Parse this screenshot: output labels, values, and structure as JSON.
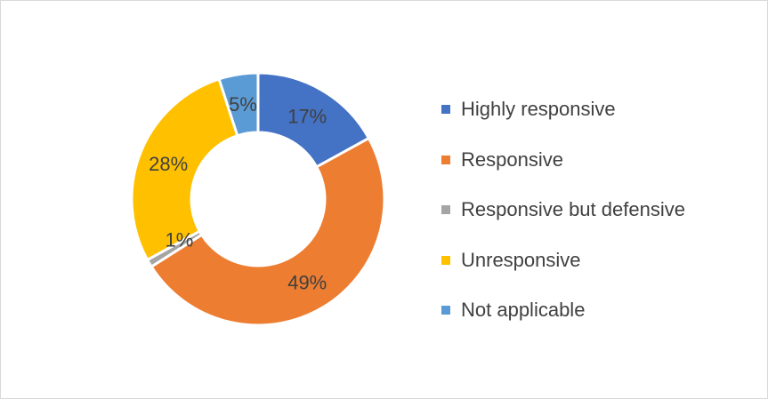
{
  "chart_data": {
    "type": "pie",
    "subtype": "doughnut",
    "title": "",
    "categories": [
      "Highly responsive",
      "Responsive",
      "Responsive but defensive",
      "Unresponsive",
      "Not applicable"
    ],
    "values": [
      17,
      49,
      1,
      28,
      5
    ],
    "labels": [
      "17%",
      "49%",
      "1%",
      "28%",
      "5%"
    ],
    "colors": [
      "#4472C4",
      "#ED7D31",
      "#A5A5A5",
      "#FFC000",
      "#5B9BD5"
    ],
    "legend": {
      "position": "right",
      "items": [
        {
          "label": "Highly responsive",
          "color": "#4472C4"
        },
        {
          "label": "Responsive",
          "color": "#ED7D31"
        },
        {
          "label": "Responsive but defensive",
          "color": "#A5A5A5"
        },
        {
          "label": "Unresponsive",
          "color": "#FFC000"
        },
        {
          "label": "Not applicable",
          "color": "#5B9BD5"
        }
      ]
    }
  }
}
